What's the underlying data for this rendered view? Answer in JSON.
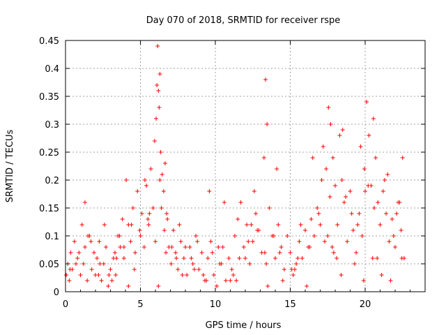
{
  "chart_data": {
    "type": "scatter",
    "title": "Day 070 of 2018, SRMTID for receiver rspe",
    "xlabel": "GPS time / hours",
    "ylabel": "SRMTID / TECUs",
    "xlim": [
      0,
      24
    ],
    "ylim": [
      0,
      0.45
    ],
    "xticks": [
      0,
      5,
      10,
      15,
      20
    ],
    "xtick_labels": [
      "0",
      "5",
      "10",
      "15",
      "20"
    ],
    "yticks": [
      0,
      0.05,
      0.1,
      0.15,
      0.2,
      0.25,
      0.3,
      0.35,
      0.4,
      0.45
    ],
    "ytick_labels": [
      "0",
      "0.05",
      "0.1",
      "0.15",
      "0.2",
      "0.25",
      "0.3",
      "0.35",
      "0.4",
      "0.45"
    ],
    "grid": true,
    "marker": "+",
    "color": "#ff0000",
    "series": [
      {
        "name": "SRMTID",
        "x": [
          0.05,
          0.15,
          0.25,
          0.35,
          0.45,
          0.6,
          0.8,
          1.0,
          1.1,
          1.2,
          1.3,
          1.45,
          1.6,
          1.75,
          1.9,
          2.0,
          2.1,
          2.25,
          2.4,
          2.55,
          2.7,
          2.85,
          3.0,
          3.1,
          3.2,
          3.35,
          3.5,
          3.65,
          3.8,
          3.9,
          4.05,
          4.2,
          4.35,
          4.5,
          4.65,
          4.8,
          4.95,
          5.1,
          5.25,
          5.4,
          5.55,
          5.7,
          5.85,
          5.95,
          6.05,
          6.1,
          6.15,
          6.2,
          6.25,
          6.3,
          6.35,
          6.45,
          6.55,
          6.65,
          6.75,
          6.9,
          7.05,
          7.2,
          7.35,
          7.5,
          7.7,
          7.9,
          8.1,
          8.3,
          8.5,
          8.7,
          8.9,
          9.1,
          9.3,
          9.5,
          9.7,
          9.9,
          10.1,
          10.3,
          10.5,
          10.7,
          10.9,
          11.1,
          11.3,
          11.5,
          11.7,
          11.9,
          12.1,
          12.3,
          12.5,
          12.7,
          12.9,
          13.1,
          13.25,
          13.35,
          13.45,
          13.6,
          13.8,
          14.0,
          14.2,
          14.4,
          14.6,
          14.8,
          15.0,
          15.2,
          15.4,
          15.6,
          15.8,
          16.0,
          16.2,
          16.4,
          16.6,
          16.8,
          17.0,
          17.2,
          17.4,
          17.55,
          17.7,
          17.85,
          18.0,
          18.15,
          18.3,
          18.45,
          18.6,
          18.8,
          19.0,
          19.2,
          19.4,
          19.6,
          19.8,
          19.95,
          20.1,
          20.25,
          20.4,
          20.55,
          20.7,
          20.85,
          21.0,
          21.2,
          21.4,
          21.6,
          21.8,
          22.0,
          22.2,
          22.4,
          22.6,
          0.3,
          0.9,
          1.5,
          2.3,
          2.9,
          3.4,
          3.9,
          4.4,
          5.0,
          5.6,
          6.0,
          6.4,
          6.8,
          7.4,
          8.0,
          8.6,
          9.2,
          9.8,
          10.4,
          11.0,
          11.6,
          12.2,
          12.8,
          13.3,
          13.9,
          14.5,
          15.1,
          15.7,
          16.3,
          16.9,
          17.5,
          18.1,
          18.7,
          19.3,
          19.9,
          20.5,
          21.1,
          21.7,
          22.3,
          0.7,
          1.7,
          2.6,
          3.6,
          4.6,
          5.3,
          6.2,
          6.6,
          7.1,
          7.8,
          8.8,
          9.6,
          10.6,
          11.4,
          12.4,
          13.4,
          14.3,
          15.3,
          16.1,
          17.1,
          17.8,
          18.4,
          19.1,
          19.7,
          20.2,
          20.8,
          21.5,
          22.1,
          22.5,
          1.3,
          2.2,
          3.3,
          4.2,
          5.5,
          6.3,
          6.7,
          7.6,
          8.4,
          9.4,
          10.2,
          11.2,
          12.0,
          12.6,
          13.5,
          14.1,
          15.5,
          16.5,
          17.3,
          17.65,
          17.9,
          18.5,
          19.5,
          20.0,
          20.6,
          21.3,
          21.9,
          22.45
        ],
        "y": [
          0.03,
          0.05,
          0.02,
          0.07,
          0.04,
          0.09,
          0.06,
          0.03,
          0.12,
          0.05,
          0.08,
          0.02,
          0.1,
          0.04,
          0.07,
          0.03,
          0.06,
          0.09,
          0.02,
          0.05,
          0.08,
          0.01,
          0.04,
          0.02,
          0.06,
          0.03,
          0.1,
          0.08,
          0.13,
          0.06,
          0.2,
          0.12,
          0.09,
          0.15,
          0.07,
          0.18,
          0.11,
          0.14,
          0.08,
          0.19,
          0.12,
          0.22,
          0.15,
          0.27,
          0.31,
          0.37,
          0.44,
          0.36,
          0.33,
          0.39,
          0.25,
          0.21,
          0.18,
          0.23,
          0.14,
          0.08,
          0.05,
          0.11,
          0.07,
          0.04,
          0.09,
          0.06,
          0.03,
          0.08,
          0.05,
          0.1,
          0.04,
          0.07,
          0.02,
          0.06,
          0.09,
          0.03,
          0.01,
          0.05,
          0.08,
          0.02,
          0.06,
          0.04,
          0.1,
          0.13,
          0.16,
          0.08,
          0.12,
          0.05,
          0.09,
          0.14,
          0.11,
          0.07,
          0.24,
          0.38,
          0.3,
          0.15,
          0.1,
          0.06,
          0.12,
          0.08,
          0.04,
          0.1,
          0.07,
          0.03,
          0.05,
          0.09,
          0.06,
          0.11,
          0.08,
          0.13,
          0.1,
          0.15,
          0.12,
          0.26,
          0.22,
          0.33,
          0.3,
          0.24,
          0.19,
          0.12,
          0.28,
          0.2,
          0.16,
          0.09,
          0.18,
          0.11,
          0.07,
          0.14,
          0.1,
          0.22,
          0.34,
          0.28,
          0.19,
          0.31,
          0.24,
          0.16,
          0.12,
          0.18,
          0.14,
          0.09,
          0.13,
          0.08,
          0.16,
          0.11,
          0.06,
          0.04,
          0.07,
          0.1,
          0.05,
          0.03,
          0.06,
          0.08,
          0.12,
          0.1,
          0.14,
          0.09,
          0.15,
          0.13,
          0.06,
          0.08,
          0.04,
          0.03,
          0.07,
          0.05,
          0.02,
          0.06,
          0.09,
          0.11,
          0.07,
          0.1,
          0.02,
          0.04,
          0.12,
          0.08,
          0.14,
          0.1,
          0.06,
          0.17,
          0.05,
          0.02,
          0.06,
          0.03,
          0.02,
          0.16,
          0.05,
          0.09,
          0.12,
          0.1,
          0.04,
          0.2,
          0.01,
          0.11,
          0.08,
          0.03,
          0.09,
          0.18,
          0.16,
          0.02,
          0.12,
          0.05,
          0.07,
          0.04,
          0.01,
          0.2,
          0.08,
          0.03,
          0.14,
          0.26,
          0.19,
          0.06,
          0.21,
          0.14,
          0.24,
          0.16,
          0.03,
          0.07,
          0.01,
          0.13,
          0.2,
          0.07,
          0.12,
          0.06,
          0.02,
          0.08,
          0.03,
          0.06,
          0.18,
          0.01,
          0.22,
          0.06,
          0.24,
          0.09,
          0.17,
          0.07,
          0.29,
          0.12,
          0.18,
          0.15,
          0.2,
          0.1,
          0.06
        ]
      }
    ]
  }
}
